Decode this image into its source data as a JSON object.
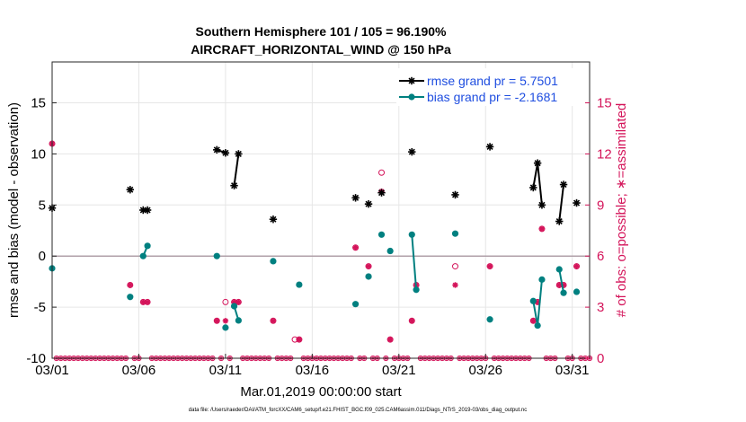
{
  "chart_data": {
    "type": "scatter",
    "title": "Southern Hemisphere 101 / 105 = 96.190%",
    "subtitle": "AIRCRAFT_HORIZONTAL_WIND @ 150 hPa",
    "xlabel": "Mar.01,2019 00:00:00 start",
    "ylabel_left": "rmse and bias (model - observation)",
    "ylabel_right": "# of obs: o=possible; ∗=assimilated",
    "xlim": [
      1,
      32
    ],
    "ylim_left": [
      -10,
      19
    ],
    "ylim_right": [
      0,
      17.4
    ],
    "x_tick_values": [
      1,
      6,
      11,
      16,
      21,
      26,
      31
    ],
    "x_tick_labels": [
      "03/01",
      "03/06",
      "03/11",
      "03/16",
      "03/21",
      "03/26",
      "03/31"
    ],
    "y_left_ticks": [
      -10,
      -5,
      0,
      5,
      10,
      15
    ],
    "y_right_ticks": [
      0,
      3,
      6,
      9,
      12,
      15
    ],
    "grid": true,
    "legend_position": "top-right",
    "legend": {
      "rmse": "rmse grand pr = 5.7501",
      "bias": "bias grand pr = -2.1681"
    },
    "colors": {
      "rmse": "#000000",
      "bias": "#008080",
      "obs": "#d4145a",
      "zero_line": "#b0a0a8",
      "grid": "#e6e6e6"
    },
    "rmse_segments": [
      [
        [
          1.0,
          4.7
        ]
      ],
      [
        [
          5.5,
          6.5
        ]
      ],
      [
        [
          6.25,
          4.5
        ],
        [
          6.5,
          4.5
        ]
      ],
      [
        [
          10.5,
          10.4
        ],
        [
          11.0,
          10.1
        ]
      ],
      [
        [
          11.5,
          6.9
        ],
        [
          11.75,
          10.0
        ]
      ],
      [
        [
          13.75,
          3.6
        ]
      ],
      [
        [
          18.5,
          5.7
        ]
      ],
      [
        [
          19.25,
          5.1
        ]
      ],
      [
        [
          20.0,
          6.2
        ]
      ],
      [
        [
          21.75,
          10.2
        ]
      ],
      [
        [
          24.25,
          6.0
        ]
      ],
      [
        [
          26.25,
          10.7
        ]
      ],
      [
        [
          28.75,
          6.7
        ],
        [
          29.0,
          9.1
        ],
        [
          29.25,
          5.0
        ]
      ],
      [
        [
          30.25,
          3.4
        ],
        [
          30.5,
          7.0
        ]
      ],
      [
        [
          31.25,
          5.2
        ]
      ]
    ],
    "bias_segments": [
      [
        [
          1.0,
          -1.2
        ]
      ],
      [
        [
          5.5,
          -4.0
        ]
      ],
      [
        [
          6.25,
          0.0
        ],
        [
          6.5,
          1.0
        ]
      ],
      [
        [
          10.5,
          0.0
        ]
      ],
      [
        [
          11.0,
          -7.0
        ]
      ],
      [
        [
          11.5,
          -4.9
        ],
        [
          11.75,
          -6.3
        ]
      ],
      [
        [
          13.75,
          -0.5
        ]
      ],
      [
        [
          15.25,
          -2.8
        ]
      ],
      [
        [
          18.5,
          -4.7
        ]
      ],
      [
        [
          19.25,
          -2.0
        ]
      ],
      [
        [
          20.0,
          2.1
        ]
      ],
      [
        [
          20.5,
          0.5
        ]
      ],
      [
        [
          21.75,
          2.1
        ],
        [
          22.0,
          -3.3
        ]
      ],
      [
        [
          24.25,
          2.2
        ]
      ],
      [
        [
          26.25,
          -6.2
        ]
      ],
      [
        [
          28.75,
          -4.4
        ],
        [
          29.0,
          -6.8
        ],
        [
          29.25,
          -2.3
        ]
      ],
      [
        [
          30.25,
          -1.3
        ],
        [
          30.5,
          -3.6
        ]
      ],
      [
        [
          31.25,
          -3.5
        ]
      ]
    ],
    "obs_possible": [
      [
        1.0,
        12.6
      ],
      [
        5.5,
        4.3
      ],
      [
        6.25,
        3.3
      ],
      [
        6.5,
        3.3
      ],
      [
        10.5,
        2.2
      ],
      [
        11.0,
        3.3
      ],
      [
        11.5,
        3.3
      ],
      [
        11.75,
        3.3
      ],
      [
        13.75,
        2.2
      ],
      [
        15.0,
        1.1
      ],
      [
        15.25,
        1.1
      ],
      [
        18.5,
        6.5
      ],
      [
        19.25,
        5.4
      ],
      [
        20.0,
        10.9
      ],
      [
        20.5,
        1.1
      ],
      [
        21.75,
        2.2
      ],
      [
        22.0,
        4.3
      ],
      [
        24.25,
        5.4
      ],
      [
        26.25,
        5.4
      ],
      [
        28.75,
        2.2
      ],
      [
        29.0,
        3.3
      ],
      [
        29.25,
        7.6
      ],
      [
        30.25,
        4.3
      ],
      [
        30.5,
        4.3
      ],
      [
        31.25,
        5.4
      ]
    ],
    "obs_assimilated": [
      [
        1.0,
        12.6
      ],
      [
        5.5,
        4.3
      ],
      [
        6.25,
        3.3
      ],
      [
        6.5,
        3.3
      ],
      [
        10.5,
        2.2
      ],
      [
        11.0,
        2.2
      ],
      [
        11.5,
        3.3
      ],
      [
        11.75,
        3.3
      ],
      [
        13.75,
        2.2
      ],
      [
        15.25,
        1.1
      ],
      [
        18.5,
        6.5
      ],
      [
        19.25,
        5.4
      ],
      [
        20.0,
        9.8
      ],
      [
        20.5,
        1.1
      ],
      [
        21.75,
        2.2
      ],
      [
        22.0,
        4.3
      ],
      [
        24.25,
        4.3
      ],
      [
        26.25,
        5.4
      ],
      [
        28.75,
        2.2
      ],
      [
        29.0,
        3.3
      ],
      [
        29.25,
        7.6
      ],
      [
        30.25,
        4.3
      ],
      [
        30.5,
        4.3
      ],
      [
        31.25,
        5.4
      ]
    ],
    "obs_zero_days": [
      1,
      32,
      0.25
    ],
    "footer": "data file: /Users/raeder/DAI/ATM_forcXX/CAM6_setup/f.e21.FHIST_BGC.f09_025.CAM6assim.011/Diags_NTrS_2019-03/obs_diag_output.nc"
  }
}
